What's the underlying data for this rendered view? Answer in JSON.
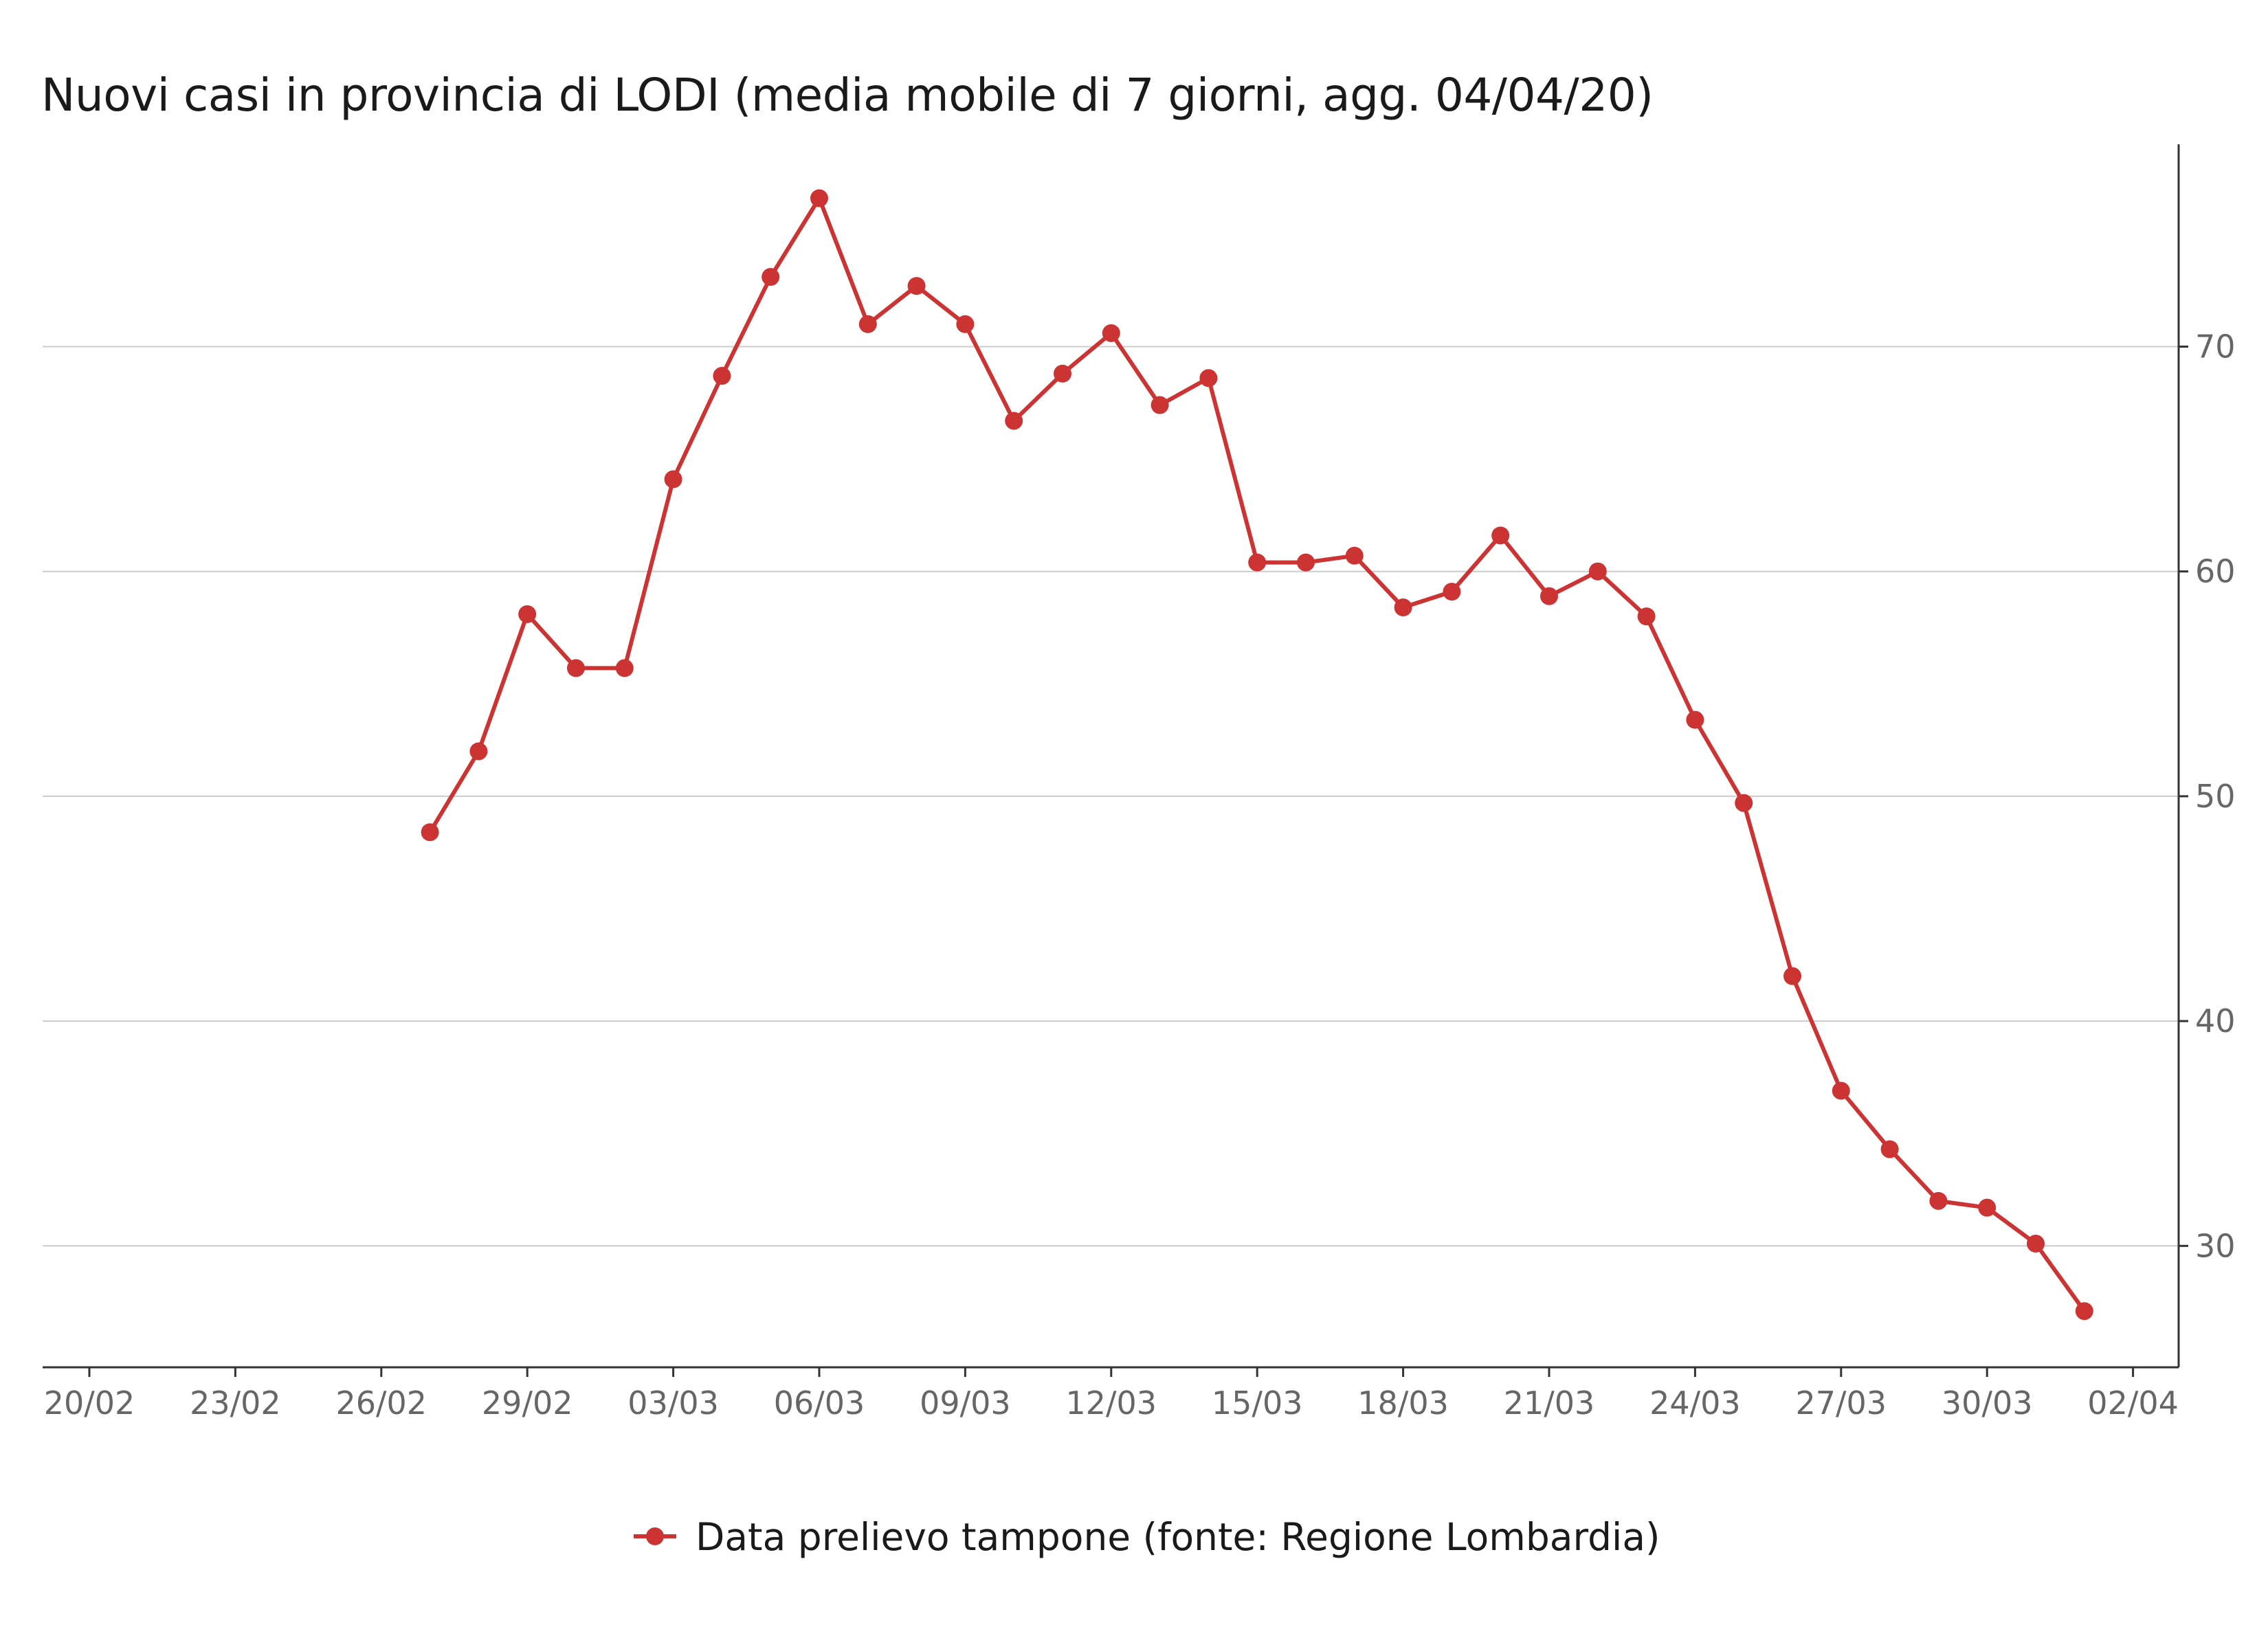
{
  "chart_data": {
    "type": "line",
    "title": "Nuovi casi in provincia di LODI (media mobile di 7 giorni, agg. 04/04/20)",
    "xlabel": "",
    "ylabel": "",
    "x_axis_type": "date",
    "x_ticks": [
      "20/02",
      "23/02",
      "26/02",
      "29/02",
      "03/03",
      "06/03",
      "09/03",
      "12/03",
      "15/03",
      "18/03",
      "21/03",
      "24/03",
      "27/03",
      "30/03",
      "02/04"
    ],
    "xlim": [
      "2020-02-20",
      "2020-04-02"
    ],
    "y_ticks": [
      30,
      40,
      50,
      60,
      70
    ],
    "ylim": [
      24.6,
      79.0
    ],
    "y_axis_position": "right",
    "grid": "horizontal",
    "legend_position": "bottom",
    "series": [
      {
        "name": "Data prelievo tampone (fonte: Regione Lombardia)",
        "color": "#cc3333",
        "marker": "circle",
        "points": [
          {
            "x": "2020-02-27",
            "y": 48.4
          },
          {
            "x": "2020-02-28",
            "y": 52.0
          },
          {
            "x": "2020-02-29",
            "y": 58.1
          },
          {
            "x": "2020-03-01",
            "y": 55.7
          },
          {
            "x": "2020-03-02",
            "y": 55.7
          },
          {
            "x": "2020-03-03",
            "y": 64.1
          },
          {
            "x": "2020-03-04",
            "y": 68.7
          },
          {
            "x": "2020-03-05",
            "y": 73.1
          },
          {
            "x": "2020-03-06",
            "y": 76.6
          },
          {
            "x": "2020-03-07",
            "y": 71.0
          },
          {
            "x": "2020-03-08",
            "y": 72.7
          },
          {
            "x": "2020-03-09",
            "y": 71.0
          },
          {
            "x": "2020-03-10",
            "y": 66.7
          },
          {
            "x": "2020-03-11",
            "y": 68.8
          },
          {
            "x": "2020-03-12",
            "y": 70.6
          },
          {
            "x": "2020-03-13",
            "y": 67.4
          },
          {
            "x": "2020-03-14",
            "y": 68.6
          },
          {
            "x": "2020-03-15",
            "y": 60.4
          },
          {
            "x": "2020-03-16",
            "y": 60.4
          },
          {
            "x": "2020-03-17",
            "y": 60.7
          },
          {
            "x": "2020-03-18",
            "y": 58.4
          },
          {
            "x": "2020-03-19",
            "y": 59.1
          },
          {
            "x": "2020-03-20",
            "y": 61.6
          },
          {
            "x": "2020-03-21",
            "y": 58.9
          },
          {
            "x": "2020-03-22",
            "y": 60.0
          },
          {
            "x": "2020-03-23",
            "y": 58.0
          },
          {
            "x": "2020-03-24",
            "y": 53.4
          },
          {
            "x": "2020-03-25",
            "y": 49.7
          },
          {
            "x": "2020-03-26",
            "y": 42.0
          },
          {
            "x": "2020-03-27",
            "y": 36.9
          },
          {
            "x": "2020-03-28",
            "y": 34.3
          },
          {
            "x": "2020-03-29",
            "y": 32.0
          },
          {
            "x": "2020-03-30",
            "y": 31.7
          },
          {
            "x": "2020-03-31",
            "y": 30.1
          },
          {
            "x": "2020-04-01",
            "y": 27.1
          }
        ]
      }
    ]
  }
}
